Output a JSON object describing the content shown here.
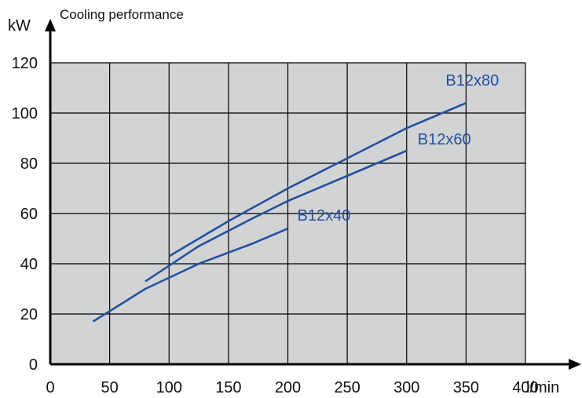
{
  "chart_data": {
    "type": "line",
    "title": "Cooling performance",
    "ylabel": "kW",
    "xlabel": "l/min",
    "xlim": [
      0,
      400
    ],
    "ylim": [
      0,
      120
    ],
    "x_ticks": [
      0,
      50,
      100,
      150,
      200,
      250,
      300,
      350,
      400
    ],
    "y_ticks": [
      0,
      20,
      40,
      60,
      80,
      100,
      120
    ],
    "grid": true,
    "colors": {
      "plot_background": "#d1d3d4",
      "grid": "#000000",
      "axis": "#000000",
      "series": "#2650a0"
    },
    "series": [
      {
        "name": "B12x40",
        "x": [
          36,
          80,
          125,
          170,
          200
        ],
        "y": [
          17,
          30,
          40,
          48,
          54
        ]
      },
      {
        "name": "B12x60",
        "x": [
          80,
          125,
          170,
          200,
          250,
          300
        ],
        "y": [
          33,
          47,
          58,
          65,
          75,
          85
        ]
      },
      {
        "name": "B12x80",
        "x": [
          100,
          150,
          200,
          250,
          300,
          350
        ],
        "y": [
          43,
          57,
          70,
          82,
          94,
          104
        ]
      }
    ]
  }
}
